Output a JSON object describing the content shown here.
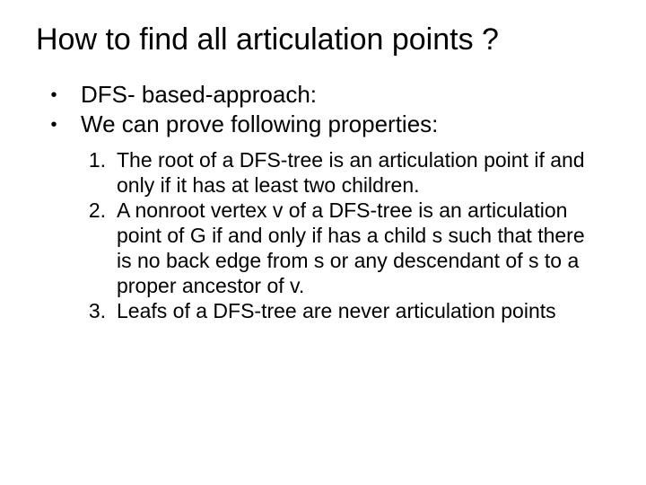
{
  "title": "How to find all articulation points ?",
  "bullet1": "DFS- based-approach:",
  "bullet2": "We can prove following properties:",
  "item1": "The root of a DFS-tree  is an articulation point if and only if it has at least two children.",
  "item2": "A nonroot vertex v of a DFS-tree  is an articulation point of G if and only if  has a child s such that there is no back edge from s or any descendant of s to a proper ancestor of v.",
  "item3": "Leafs of a DFS-tree are never articulation points",
  "colors": {
    "background": "#ffffff",
    "text": "#000000"
  },
  "fonts": {
    "title_size": 34,
    "bullet_size": 26,
    "item_size": 23,
    "family": "Arial"
  }
}
